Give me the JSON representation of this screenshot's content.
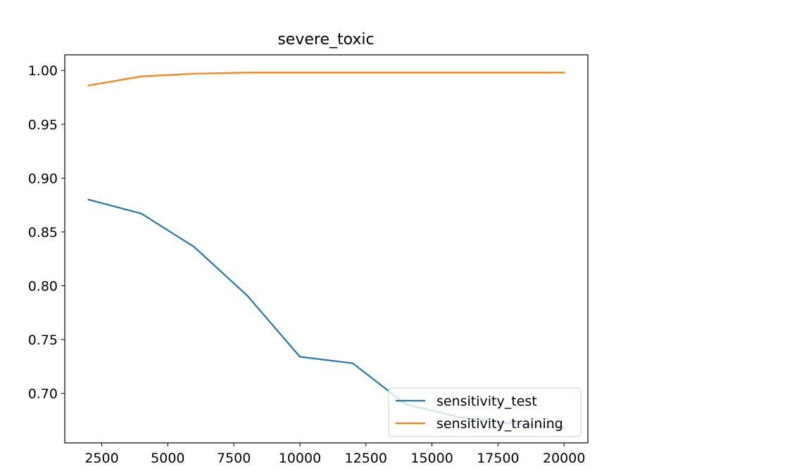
{
  "chart_data": {
    "type": "line",
    "title": "severe_toxic",
    "xlabel": "",
    "ylabel": "",
    "xlim": [
      1100,
      20900
    ],
    "ylim": [
      0.654,
      1.0145
    ],
    "xticks": [
      2500,
      5000,
      7500,
      10000,
      12500,
      15000,
      17500,
      20000
    ],
    "xtick_labels": [
      "2500",
      "5000",
      "7500",
      "10000",
      "12500",
      "15000",
      "17500",
      "20000"
    ],
    "yticks": [
      0.7,
      0.75,
      0.8,
      0.85,
      0.9,
      0.95,
      1.0
    ],
    "ytick_labels": [
      "0.70",
      "0.75",
      "0.80",
      "0.85",
      "0.90",
      "0.95",
      "1.00"
    ],
    "x": [
      2000,
      4000,
      6000,
      8000,
      10000,
      12000,
      14000,
      16000,
      18000,
      20000
    ],
    "series": [
      {
        "name": "sensitivity_test",
        "color": "#1f77b4",
        "values": [
          0.88,
          0.867,
          0.836,
          0.791,
          0.734,
          0.728,
          0.69,
          0.678,
          0.672,
          0.668
        ]
      },
      {
        "name": "sensitivity_training",
        "color": "#ff7f0e",
        "values": [
          0.986,
          0.9945,
          0.997,
          0.998,
          0.998,
          0.998,
          0.998,
          0.998,
          0.998,
          0.998
        ]
      }
    ],
    "legend_position": "lower-right",
    "grid": false
  }
}
